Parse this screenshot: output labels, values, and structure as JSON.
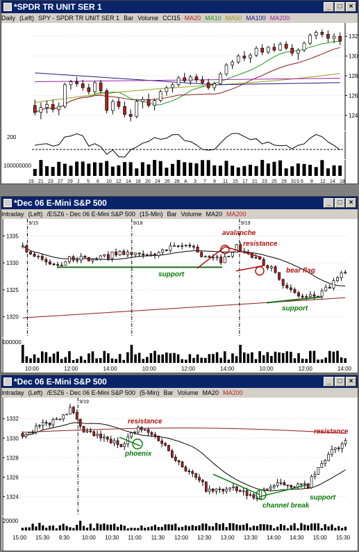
{
  "colors": {
    "up": "#ffffff",
    "down": "#b22222",
    "outline": "#000000",
    "ma20": "#000000",
    "ma_red": "#8b1a1a",
    "ma_green": "#1a9a1a",
    "ma_olive": "#9a9a20",
    "ma_navy": "#1a1a8a",
    "ma_purple": "#a020a0",
    "support": "#1a6a1a",
    "annot_red": "#b01010",
    "annot_green": "#0a7a0a"
  },
  "panels": [
    {
      "title": "*SPDR TR UNIT SER 1",
      "subtitle": [
        "Daily",
        "(Left)",
        "SPY - SPDR TR UNIT SER 1",
        "Bar",
        "Volume",
        "CCI15",
        "MA20",
        "MA10",
        "MA50",
        "MA100",
        "MA200"
      ],
      "subtitle_colors": {
        "MA20": "#b22222",
        "MA10": "#1a9a1a",
        "MA50": "#9a9a20",
        "MA100": "#1a1a8a",
        "MA200": "#a020a0"
      }
    },
    {
      "title": "*Dec 06  E-Mini S&P 500",
      "subtitle": [
        "Intraday",
        "(Left)",
        "/ESZ6 - Dec 06  E-Mini S&P 500",
        "(15-Min)",
        "Bar",
        "Volume",
        "MA20",
        "MA200"
      ],
      "subtitle_colors": {
        "MA200": "#b22222"
      }
    },
    {
      "title": "*Dec 06  E-Mini S&P 500",
      "subtitle": [
        "Intraday",
        "(Left)",
        "/ESZ6 - Dec 06  E-Mini S&P 500",
        "(5-Min)",
        "Bar",
        "Volume",
        "MA20",
        "MA200"
      ],
      "subtitle_colors": {
        "MA200": "#b22222"
      }
    }
  ],
  "chart_data": [
    {
      "type": "candlestick",
      "interval": "Daily",
      "symbol": "SPY",
      "y_ticks": [
        124,
        126,
        128,
        130,
        132
      ],
      "ylim": [
        122.8,
        133.0
      ],
      "x_tick_labels": [
        "19",
        "21",
        "23",
        "27",
        "29",
        "J",
        "5",
        "6",
        "10",
        "12",
        "14",
        "18",
        "20",
        "24",
        "26",
        "28",
        "A",
        "3",
        "7",
        "9",
        "11",
        "15",
        "17",
        "21",
        "23",
        "25",
        "29",
        "31S",
        "6",
        "8",
        "12",
        "14",
        "18"
      ],
      "bars": [
        [
          125.0,
          125.6,
          124.0,
          124.3
        ],
        [
          124.3,
          125.3,
          123.6,
          124.8
        ],
        [
          124.8,
          125.5,
          124.2,
          125.1
        ],
        [
          125.1,
          125.6,
          124.3,
          124.6
        ],
        [
          124.6,
          125.3,
          124.0,
          124.9
        ],
        [
          124.9,
          127.3,
          124.7,
          127.1
        ],
        [
          127.1,
          127.6,
          126.6,
          127.4
        ],
        [
          127.4,
          127.9,
          126.9,
          127.2
        ],
        [
          127.2,
          127.6,
          126.5,
          126.8
        ],
        [
          126.8,
          127.2,
          126.1,
          126.4
        ],
        [
          126.4,
          127.5,
          126.2,
          127.3
        ],
        [
          127.3,
          127.6,
          126.2,
          126.5
        ],
        [
          126.5,
          126.7,
          124.2,
          124.5
        ],
        [
          124.5,
          125.6,
          124.1,
          125.4
        ],
        [
          125.4,
          125.8,
          124.6,
          124.9
        ],
        [
          124.9,
          125.4,
          123.8,
          124.1
        ],
        [
          124.1,
          124.6,
          123.4,
          123.9
        ],
        [
          123.9,
          125.6,
          123.7,
          125.4
        ],
        [
          125.4,
          125.9,
          124.7,
          125.6
        ],
        [
          125.6,
          126.2,
          124.8,
          125.0
        ],
        [
          125.0,
          125.7,
          124.5,
          125.5
        ],
        [
          125.5,
          126.6,
          125.3,
          126.4
        ],
        [
          126.4,
          127.0,
          126.0,
          126.8
        ],
        [
          126.8,
          127.3,
          126.3,
          127.1
        ],
        [
          127.1,
          128.0,
          126.9,
          127.8
        ],
        [
          127.8,
          128.3,
          127.3,
          127.5
        ],
        [
          127.5,
          128.1,
          127.1,
          127.9
        ],
        [
          127.9,
          128.2,
          127.3,
          127.6
        ],
        [
          127.6,
          128.0,
          127.1,
          127.3
        ],
        [
          127.3,
          127.7,
          126.6,
          126.8
        ],
        [
          126.8,
          127.4,
          126.5,
          127.2
        ],
        [
          127.2,
          128.4,
          127.1,
          128.2
        ],
        [
          128.2,
          129.3,
          128.0,
          129.1
        ],
        [
          129.1,
          129.6,
          128.7,
          129.4
        ],
        [
          129.4,
          130.2,
          129.2,
          130.0
        ],
        [
          130.0,
          130.5,
          129.5,
          129.8
        ],
        [
          129.8,
          130.3,
          129.3,
          130.1
        ],
        [
          130.1,
          131.0,
          129.9,
          130.8
        ],
        [
          130.8,
          131.2,
          130.1,
          130.4
        ],
        [
          130.4,
          131.0,
          130.2,
          130.9
        ],
        [
          130.9,
          131.3,
          130.4,
          130.6
        ],
        [
          130.6,
          131.4,
          130.5,
          131.2
        ],
        [
          131.2,
          131.5,
          130.6,
          130.8
        ],
        [
          130.8,
          131.2,
          130.0,
          130.3
        ],
        [
          130.3,
          130.8,
          129.6,
          130.6
        ],
        [
          130.6,
          131.5,
          130.4,
          131.3
        ],
        [
          131.3,
          132.3,
          131.1,
          132.1
        ],
        [
          132.1,
          132.6,
          131.7,
          132.4
        ],
        [
          132.4,
          132.7,
          131.9,
          132.2
        ],
        [
          132.2,
          132.6,
          131.4,
          131.8
        ],
        [
          131.8,
          132.3,
          131.3,
          132.0
        ],
        [
          132.0,
          132.4,
          131.1,
          131.5
        ]
      ],
      "indicator": {
        "name": "CCI15",
        "level_label": "200"
      },
      "volume_label": "100000000"
    },
    {
      "type": "candlestick",
      "interval": "15-Min",
      "symbol": "/ESZ6",
      "y_ticks": [
        1320,
        1325,
        1330,
        1335
      ],
      "ylim": [
        1317.5,
        1337.5
      ],
      "session_labels": [
        "9/15",
        "9/18",
        "9/19"
      ],
      "x_tick_labels": [
        "10:00",
        "12:00",
        "14:00",
        "10:00",
        "12:00",
        "14:00",
        "10:00",
        "12:00",
        "14:00"
      ],
      "annotations": [
        {
          "text": "support",
          "color": "green"
        },
        {
          "text": "avalanche",
          "color": "red"
        },
        {
          "text": "resistance",
          "color": "red"
        },
        {
          "text": "bear flag",
          "color": "red"
        },
        {
          "text": "support",
          "color": "green"
        }
      ],
      "volume_label": "000000"
    },
    {
      "type": "candlestick",
      "interval": "5-Min",
      "symbol": "/ESZ6",
      "y_ticks": [
        1324,
        1326,
        1328,
        1330,
        1332
      ],
      "ylim": [
        1322.6,
        1333.8
      ],
      "session_labels": [
        "9/19"
      ],
      "x_tick_labels": [
        "15:00",
        "15:30",
        "9:30",
        "10:00",
        "10:30",
        "11:00",
        "11:30",
        "12:00",
        "12:30",
        "13:00",
        "13:30",
        "14:00",
        "14:30",
        "15:00",
        "15:30"
      ],
      "annotations": [
        {
          "text": "resistance",
          "color": "red"
        },
        {
          "text": "phoenix",
          "color": "green"
        },
        {
          "text": "resistance",
          "color": "red"
        },
        {
          "text": "support",
          "color": "green"
        },
        {
          "text": "channel break",
          "color": "green"
        }
      ],
      "volume_label": "20000"
    }
  ]
}
